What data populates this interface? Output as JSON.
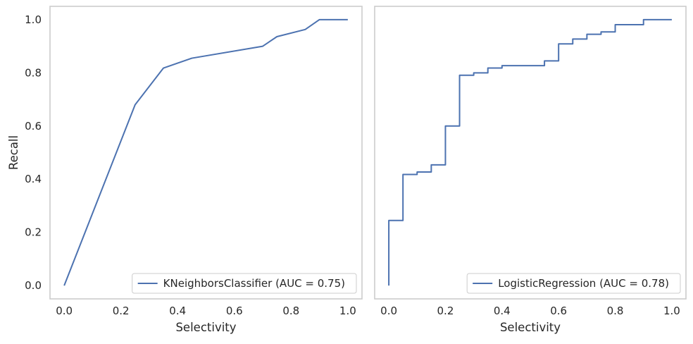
{
  "chart_data": [
    {
      "type": "line",
      "title": "",
      "xlabel": "Selectivity",
      "ylabel": "Recall",
      "xlim": [
        -0.05,
        1.05
      ],
      "ylim": [
        -0.05,
        1.05
      ],
      "xticks": [
        "0.0",
        "0.2",
        "0.4",
        "0.6",
        "0.8",
        "1.0"
      ],
      "yticks": [
        "0.0",
        "0.2",
        "0.4",
        "0.6",
        "0.8",
        "1.0"
      ],
      "grid": false,
      "legend_position": "lower-right",
      "color": "#4c72b0",
      "series": [
        {
          "name": "KNeighborsClassifier (AUC = 0.75)",
          "step": false,
          "x": [
            0.0,
            0.25,
            0.35,
            0.45,
            0.7,
            0.75,
            0.85,
            0.9,
            1.0
          ],
          "y": [
            0.0,
            0.68,
            0.818,
            0.855,
            0.9,
            0.936,
            0.963,
            1.0,
            1.0
          ]
        }
      ]
    },
    {
      "type": "line",
      "title": "",
      "xlabel": "Selectivity",
      "ylabel": "",
      "xlim": [
        -0.05,
        1.05
      ],
      "ylim": [
        -0.05,
        1.05
      ],
      "xticks": [
        "0.0",
        "0.2",
        "0.4",
        "0.6",
        "0.8",
        "1.0"
      ],
      "yticks": [],
      "grid": false,
      "legend_position": "lower-right",
      "color": "#4c72b0",
      "series": [
        {
          "name": "LogisticRegression (AUC = 0.78)",
          "step": true,
          "x": [
            0.0,
            0.05,
            0.1,
            0.15,
            0.2,
            0.25,
            0.3,
            0.35,
            0.4,
            0.55,
            0.6,
            0.65,
            0.7,
            0.75,
            0.8,
            0.9,
            1.0
          ],
          "y": [
            0.245,
            0.418,
            0.427,
            0.454,
            0.6,
            0.791,
            0.8,
            0.818,
            0.827,
            0.845,
            0.909,
            0.927,
            0.945,
            0.954,
            0.981,
            1.0,
            1.0
          ]
        }
      ]
    }
  ]
}
